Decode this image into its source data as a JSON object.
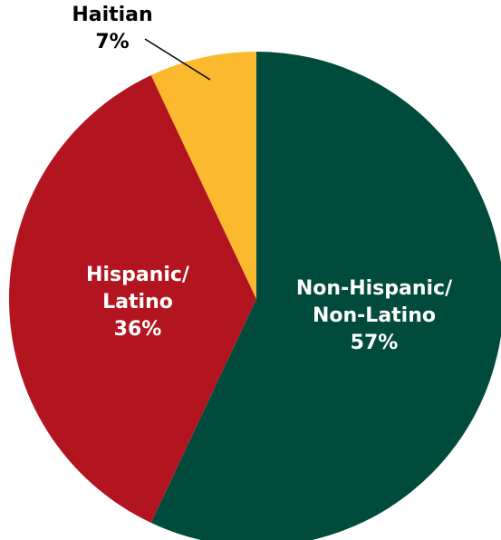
{
  "chart_data": {
    "type": "pie",
    "start_angle_deg": 0,
    "direction": "clockwise",
    "slices": [
      {
        "name": "Non-Hispanic/ Non-Latino",
        "value": 57,
        "label_lines": [
          "Non-Hispanic/",
          "Non-Latino",
          "57%"
        ],
        "color": "#004B3B",
        "label_color": "#FFFFFF",
        "label_inside": true
      },
      {
        "name": "Hispanic/ Latino",
        "value": 36,
        "label_lines": [
          "Hispanic/",
          "Latino",
          "36%"
        ],
        "color": "#B31520",
        "label_color": "#FFFFFF",
        "label_inside": true
      },
      {
        "name": "Haitian",
        "value": 7,
        "label_lines": [
          "Haitian",
          "7%"
        ],
        "color": "#FBB92F",
        "label_color": "#000000",
        "label_inside": false
      }
    ]
  }
}
